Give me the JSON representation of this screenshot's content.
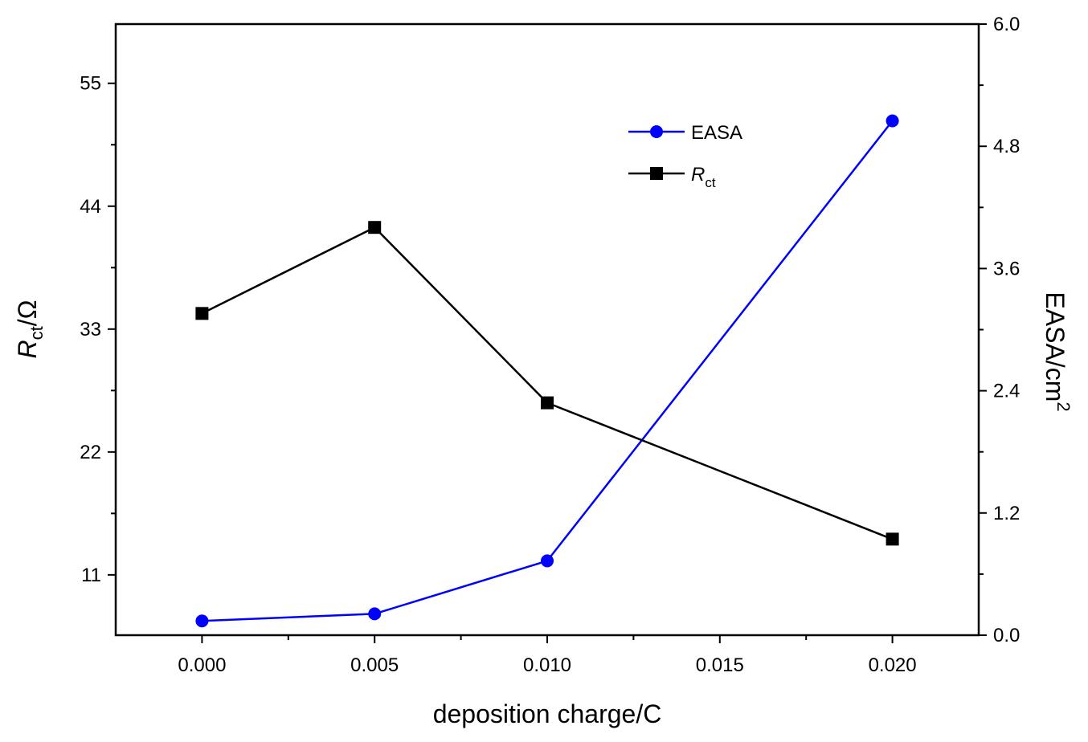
{
  "chart_data": {
    "type": "line",
    "x": [
      0.0,
      0.005,
      0.01,
      0.02
    ],
    "xlabel": "deposition charge/C",
    "xlim": [
      -0.0025,
      0.0225
    ],
    "x_ticks": [
      "0.000",
      "0.005",
      "0.010",
      "0.015",
      "0.020"
    ],
    "x_tick_values": [
      0.0,
      0.005,
      0.01,
      0.015,
      0.02
    ],
    "left_axis": {
      "label_main": "R",
      "label_sub": "ct",
      "label_unit": "/Ω",
      "ylim": [
        5.6,
        60.3
      ],
      "ticks": [
        "11",
        "22",
        "33",
        "44",
        "55"
      ],
      "tick_values": [
        11,
        22,
        33,
        44,
        55
      ]
    },
    "right_axis": {
      "label_main": "EASA/cm",
      "label_sup": "2",
      "ylim": [
        0.0,
        6.0
      ],
      "ticks": [
        "0.0",
        "1.2",
        "2.4",
        "3.6",
        "4.8",
        "6.0"
      ],
      "tick_values": [
        0.0,
        1.2,
        2.4,
        3.6,
        4.8,
        6.0
      ]
    },
    "series": [
      {
        "name": "EASA",
        "axis": "right",
        "color": "#0000ff",
        "marker": "circle",
        "values": [
          0.14,
          0.21,
          0.73,
          5.05
        ]
      },
      {
        "name": "R",
        "name_sub": "ct",
        "axis": "left",
        "color": "#000000",
        "marker": "square",
        "values": [
          34.4,
          42.1,
          26.4,
          14.2
        ]
      }
    ],
    "legend": "upper-center-right",
    "grid": false
  }
}
